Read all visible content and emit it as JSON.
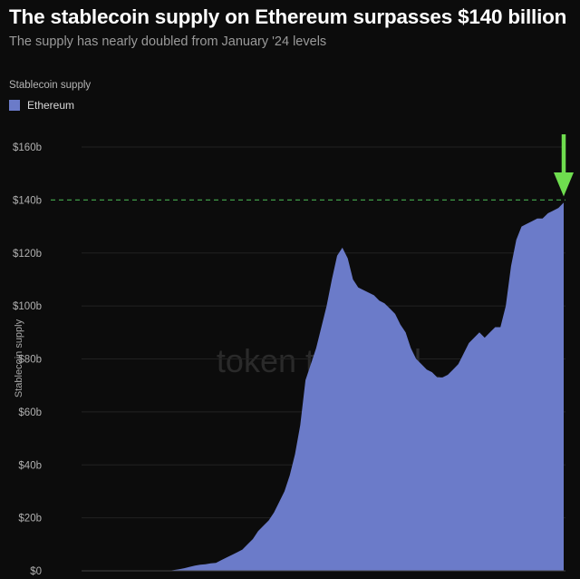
{
  "chart_data": {
    "type": "area",
    "title": "The stablecoin supply on Ethereum surpasses $140 billion",
    "subtitle": "The supply has nearly doubled from January '24 levels",
    "legend_title": "Stablecoin supply",
    "ylabel": "Stablecoin supply",
    "xlabel": "",
    "ylim": [
      0,
      160
    ],
    "y_ticks": [
      0,
      20,
      40,
      60,
      80,
      100,
      120,
      140,
      160
    ],
    "y_tick_labels": [
      "$0",
      "$20b",
      "$40b",
      "$60b",
      "$80b",
      "$100b",
      "$120b",
      "$140b",
      "$160b"
    ],
    "grid": true,
    "legend_position": "top-left",
    "watermark": "token terminal_",
    "reference_line": {
      "y": 140,
      "style": "dashed",
      "color": "#2f7d3a"
    },
    "annotation_arrow": {
      "color": "#6fdd4f",
      "points_to_y": 140
    },
    "series": [
      {
        "name": "Ethereum",
        "color": "#6b7bc9",
        "values": [
          0,
          0.3,
          0.6,
          1,
          1.5,
          2,
          2.3,
          2.5,
          2.8,
          3,
          4,
          5,
          6,
          7,
          8,
          10,
          12,
          15,
          17,
          19,
          22,
          26,
          30,
          36,
          44,
          55,
          72,
          78,
          84,
          92,
          100,
          110,
          119,
          122,
          118,
          110,
          107,
          106,
          105,
          104,
          102,
          101,
          99,
          97,
          93,
          90,
          84,
          80,
          78,
          76,
          75,
          73,
          73,
          74,
          76,
          78,
          82,
          86,
          88,
          90,
          88,
          90,
          92,
          92,
          100,
          115,
          125,
          130,
          131,
          132,
          133,
          133,
          135,
          136,
          137,
          139
        ]
      }
    ]
  }
}
